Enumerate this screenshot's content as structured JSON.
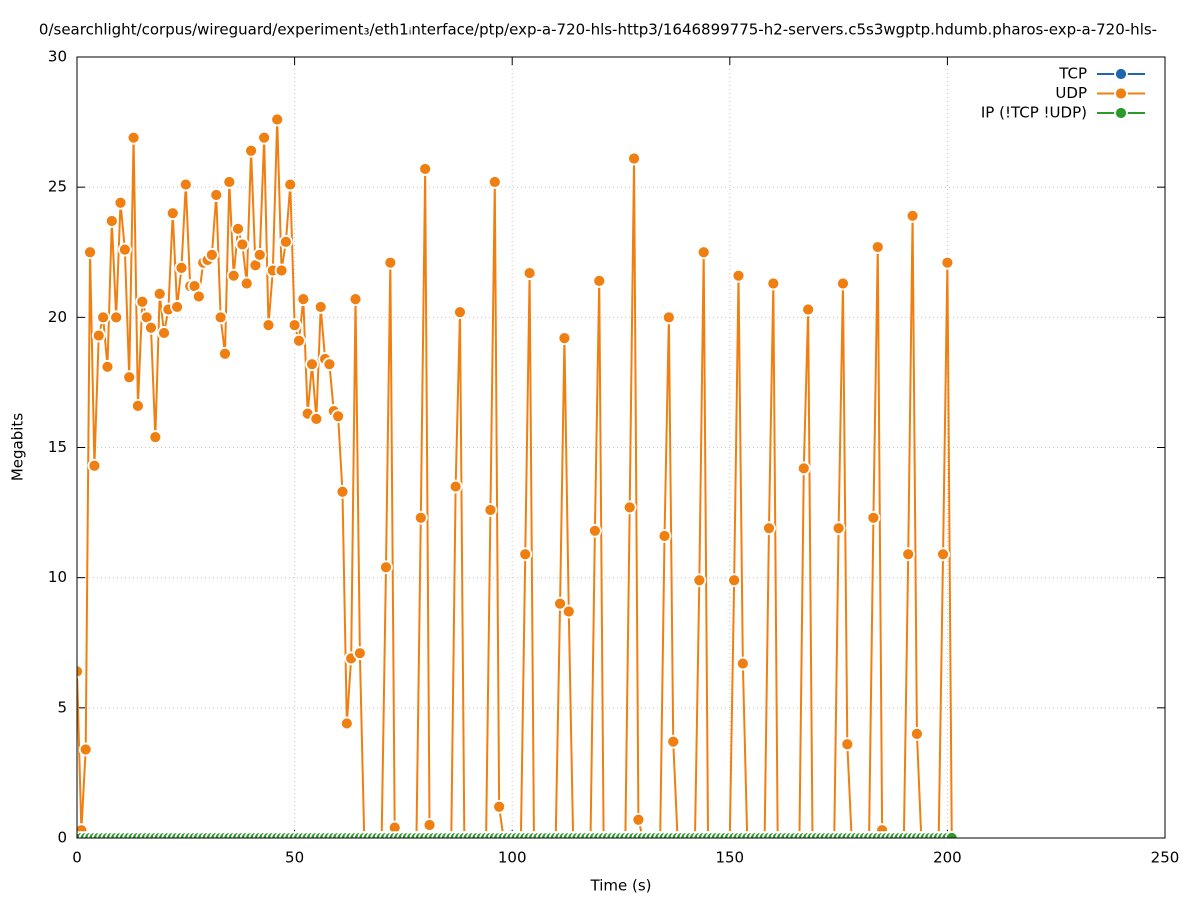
{
  "chart_data": {
    "type": "line",
    "title": "0/searchlight/corpus/wireguard/experiment₃/eth1ᵢnterface/ptp/exp-a-720-hls-http3/1646899775-h2-servers.c5s3wgptp.hdumb.pharos-exp-a-720-hls-",
    "x_label": "Time (s)",
    "y_label": "Megabits",
    "x": [
      0,
      1,
      2,
      3,
      4,
      5,
      6,
      7,
      8,
      9,
      10,
      11,
      12,
      13,
      14,
      15,
      16,
      17,
      18,
      19,
      20,
      21,
      22,
      23,
      24,
      25,
      26,
      27,
      28,
      29,
      30,
      31,
      32,
      33,
      34,
      35,
      36,
      37,
      38,
      39,
      40,
      41,
      42,
      43,
      44,
      45,
      46,
      47,
      48,
      49,
      50,
      51,
      52,
      53,
      54,
      55,
      56,
      57,
      58,
      59,
      60,
      61,
      62,
      63,
      64,
      65,
      66,
      67,
      68,
      69,
      70,
      71,
      72,
      73,
      74,
      75,
      76,
      77,
      78,
      79,
      80,
      81,
      82,
      83,
      84,
      85,
      86,
      87,
      88,
      89,
      90,
      91,
      92,
      93,
      94,
      95,
      96,
      97,
      98,
      99,
      100,
      101,
      102,
      103,
      104,
      105,
      106,
      107,
      108,
      109,
      110,
      111,
      112,
      113,
      114,
      115,
      116,
      117,
      118,
      119,
      120,
      121,
      122,
      123,
      124,
      125,
      126,
      127,
      128,
      129,
      130,
      131,
      132,
      133,
      134,
      135,
      136,
      137,
      138,
      139,
      140,
      141,
      142,
      143,
      144,
      145,
      146,
      147,
      148,
      149,
      150,
      151,
      152,
      153,
      154,
      155,
      156,
      157,
      158,
      159,
      160,
      161,
      162,
      163,
      164,
      165,
      166,
      167,
      168,
      169,
      170,
      171,
      172,
      173,
      174,
      175,
      176,
      177,
      178,
      179,
      180,
      181,
      182,
      183,
      184,
      185,
      186,
      187,
      188,
      189,
      190,
      191,
      192,
      193,
      194,
      195,
      196,
      197,
      198,
      199,
      200,
      201
    ],
    "series": [
      {
        "name": "TCP",
        "color": "#1f66b0",
        "values": [
          null,
          null,
          null,
          null,
          null,
          null,
          null,
          null,
          null,
          null,
          null,
          null,
          null,
          null,
          null,
          null,
          null,
          null,
          null,
          null,
          null,
          null,
          null,
          null,
          null,
          null,
          null,
          null,
          null,
          null,
          null,
          null,
          null,
          null,
          null,
          null,
          null,
          null,
          null,
          null,
          null,
          null,
          null,
          null,
          null,
          null,
          null,
          null,
          null,
          null,
          null,
          null,
          null,
          null,
          null,
          null,
          null,
          null,
          null,
          null,
          null,
          null,
          null,
          null,
          null,
          null,
          null,
          null,
          null,
          null,
          null,
          null,
          null,
          null,
          null,
          null,
          null,
          null,
          null,
          null,
          null,
          null,
          null,
          null,
          null,
          null,
          null,
          null,
          null,
          null,
          null,
          null,
          null,
          null,
          null,
          null,
          null,
          null,
          null,
          null,
          null,
          null,
          null,
          null,
          null,
          null,
          null,
          null,
          null,
          null,
          null,
          null,
          null,
          null,
          null,
          null,
          null,
          null,
          null,
          null,
          null,
          null,
          null,
          null,
          null,
          null,
          null,
          null,
          null,
          null,
          null,
          null,
          null,
          null,
          null,
          null,
          null,
          null,
          null,
          null,
          null,
          null,
          null,
          null,
          null,
          null,
          null,
          null,
          null,
          null,
          null,
          null,
          null,
          null,
          null,
          null,
          null,
          null,
          null,
          null,
          null,
          null,
          null,
          null,
          null,
          null,
          null,
          null,
          null,
          null,
          null,
          null,
          null,
          null,
          null,
          null,
          null,
          null,
          null,
          null,
          null,
          null,
          null,
          null,
          null,
          null,
          null,
          null,
          null,
          null,
          null,
          null,
          null,
          null,
          null,
          null,
          null,
          null,
          null,
          null,
          null,
          null
        ]
      },
      {
        "name": "UDP",
        "color": "#f07f12",
        "values": [
          6.4,
          0.3,
          3.4,
          22.5,
          14.3,
          19.3,
          20,
          18.1,
          23.7,
          20,
          24.4,
          22.6,
          17.7,
          26.9,
          16.6,
          20.6,
          20,
          19.6,
          15.4,
          20.9,
          19.4,
          20.3,
          24,
          20.4,
          21.9,
          25.1,
          21.2,
          21.2,
          20.8,
          22.1,
          22.2,
          22.4,
          24.7,
          20,
          18.6,
          25.2,
          21.6,
          23.4,
          22.8,
          21.3,
          26.4,
          22,
          22.4,
          26.9,
          19.7,
          21.8,
          27.6,
          21.8,
          22.9,
          25.1,
          19.7,
          19.1,
          20.7,
          16.3,
          18.2,
          16.1,
          20.4,
          18.4,
          18.2,
          16.4,
          16.2,
          13.3,
          4.4,
          6.9,
          20.7,
          7.1,
          0,
          0,
          0,
          0,
          0,
          10.4,
          22.1,
          0.4,
          0,
          0,
          0,
          0,
          0,
          12.3,
          25.7,
          0.5,
          0,
          0,
          0,
          0,
          0,
          13.5,
          20.2,
          0,
          0,
          0,
          0,
          0,
          0,
          12.6,
          25.2,
          1.2,
          0,
          0,
          0,
          0,
          0,
          10.9,
          21.7,
          0,
          0,
          0,
          0,
          0,
          0,
          9,
          19.2,
          8.7,
          0,
          0,
          0,
          0,
          0,
          11.8,
          21.4,
          0,
          0,
          0,
          0,
          0,
          0,
          12.7,
          26.1,
          0.7,
          0,
          0,
          0,
          0,
          0,
          11.6,
          20,
          3.7,
          0,
          0,
          0,
          0,
          0,
          9.9,
          22.5,
          0,
          0,
          0,
          0,
          0,
          0,
          9.9,
          21.6,
          6.7,
          0,
          0,
          0,
          0,
          0,
          11.9,
          21.3,
          0,
          0,
          0,
          0,
          0,
          0,
          14.2,
          20.3,
          0,
          0,
          0,
          0,
          0,
          0,
          11.9,
          21.3,
          3.6,
          0,
          0,
          0,
          0,
          0,
          12.3,
          22.7,
          0.3,
          0,
          0,
          0,
          0,
          0,
          10.9,
          23.9,
          4,
          0,
          0,
          0,
          0,
          0,
          10.9,
          22.1,
          0
        ]
      },
      {
        "name": "IP (!TCP  !UDP)",
        "color": "#2a9a2a",
        "values": [
          0,
          0,
          0,
          0,
          0,
          0,
          0,
          0,
          0,
          0,
          0,
          0,
          0,
          0,
          0,
          0,
          0,
          0,
          0,
          0,
          0,
          0,
          0,
          0,
          0,
          0,
          0,
          0,
          0,
          0,
          0,
          0,
          0,
          0,
          0,
          0,
          0,
          0,
          0,
          0,
          0,
          0,
          0,
          0,
          0,
          0,
          0,
          0,
          0,
          0,
          0,
          0,
          0,
          0,
          0,
          0,
          0,
          0,
          0,
          0,
          0,
          0,
          0,
          0,
          0,
          0,
          0,
          0,
          0,
          0,
          0,
          0,
          0,
          0,
          0,
          0,
          0,
          0,
          0,
          0,
          0,
          0,
          0,
          0,
          0,
          0,
          0,
          0,
          0,
          0,
          0,
          0,
          0,
          0,
          0,
          0,
          0,
          0,
          0,
          0,
          0,
          0,
          0,
          0,
          0,
          0,
          0,
          0,
          0,
          0,
          0,
          0,
          0,
          0,
          0,
          0,
          0,
          0,
          0,
          0,
          0,
          0,
          0,
          0,
          0,
          0,
          0,
          0,
          0,
          0,
          0,
          0,
          0,
          0,
          0,
          0,
          0,
          0,
          0,
          0,
          0,
          0,
          0,
          0,
          0,
          0,
          0,
          0,
          0,
          0,
          0,
          0,
          0,
          0,
          0,
          0,
          0,
          0,
          0,
          0,
          0,
          0,
          0,
          0,
          0,
          0,
          0,
          0,
          0,
          0,
          0,
          0,
          0,
          0,
          0,
          0,
          0,
          0,
          0,
          0,
          0,
          0,
          0,
          0,
          0,
          0,
          0,
          0,
          0,
          0,
          0,
          0,
          0,
          0,
          0,
          0,
          0,
          0,
          0,
          0,
          0,
          0
        ]
      }
    ],
    "xlim": [
      0,
      250
    ],
    "xticks": [
      0,
      50,
      100,
      150,
      200,
      250
    ],
    "ylim": [
      0,
      30
    ],
    "yticks": [
      0,
      5,
      10,
      15,
      20,
      25,
      30
    ],
    "grid": true,
    "legend": "top-right"
  }
}
